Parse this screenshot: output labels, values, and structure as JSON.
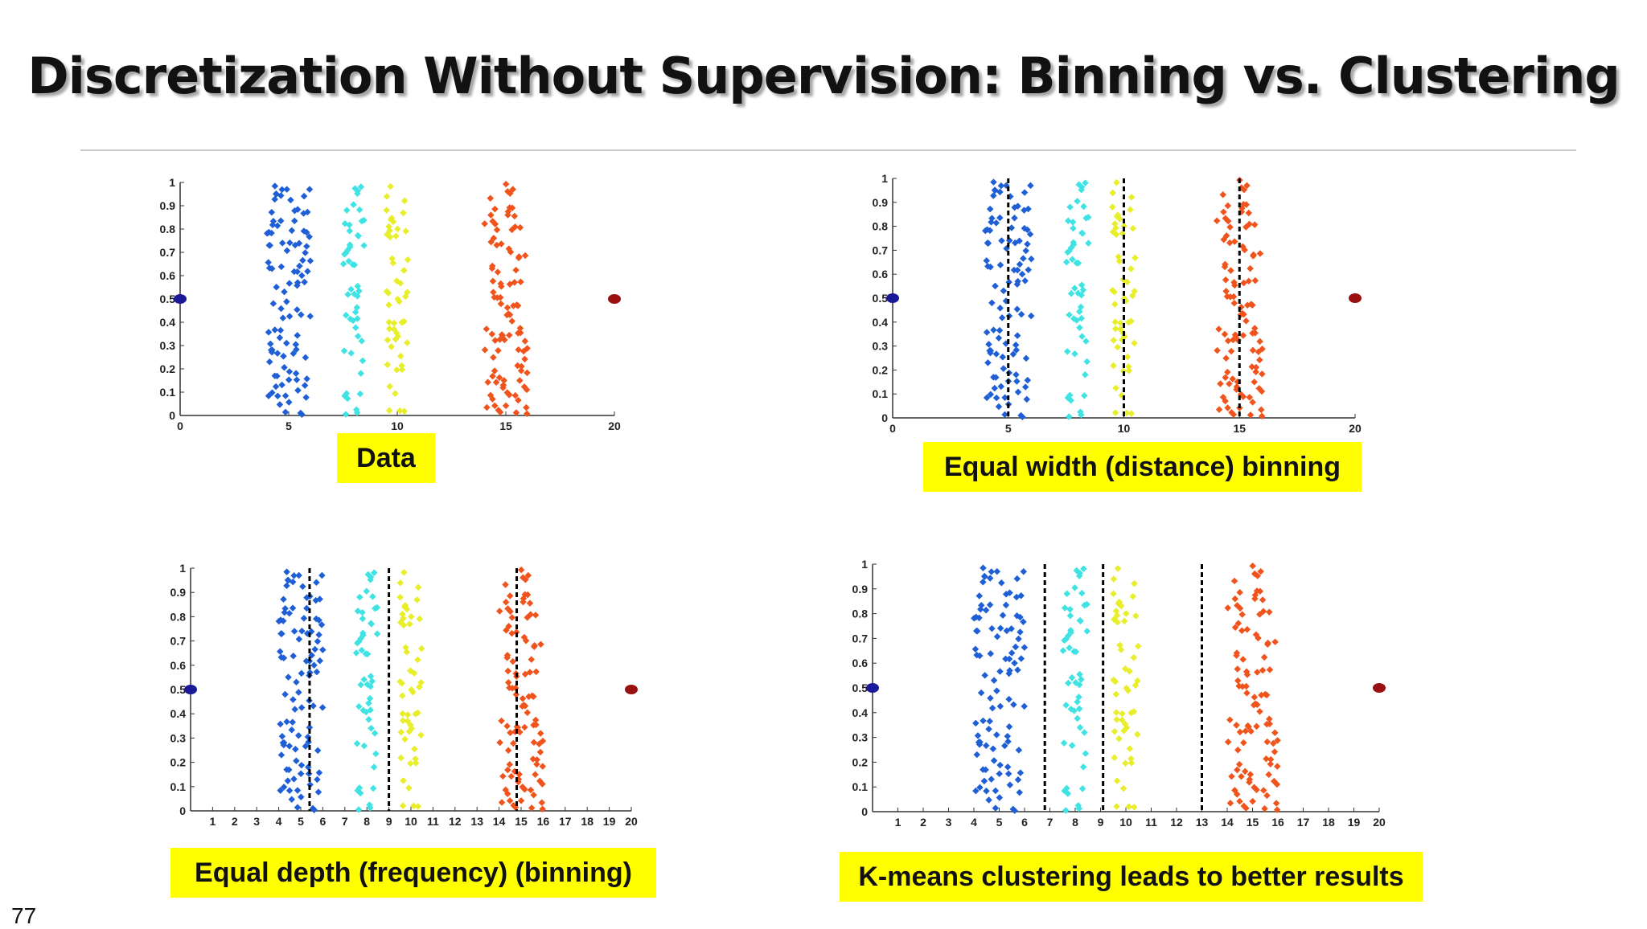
{
  "slide": {
    "title": "Discretization Without Supervision: Binning vs. Clustering",
    "page_number": "77",
    "captions": [
      "Data",
      "Equal width (distance) binning",
      "Equal depth (frequency) (binning)",
      "K-means clustering leads to better results"
    ]
  },
  "colors": {
    "cluster_blue": "#1f5fd6",
    "cluster_cyan": "#3fe3e3",
    "cluster_yellow": "#e8ee2a",
    "cluster_orange": "#f0541c",
    "outlier_left": "#1a1a99",
    "outlier_right": "#9a1010",
    "caption_background": "#ffff00"
  },
  "chart_data": [
    {
      "type": "scatter",
      "caption": "Data",
      "xlim": [
        0,
        20
      ],
      "ylim": [
        0,
        1
      ],
      "xticks": [
        "0",
        "5",
        "10",
        "15",
        "20"
      ],
      "yticks": [
        "0",
        "0.1",
        "0.2",
        "0.3",
        "0.4",
        "0.5",
        "0.6",
        "0.7",
        "0.8",
        "0.9",
        "1"
      ],
      "clusters": [
        {
          "color": "blue",
          "x_range": [
            4,
            6
          ],
          "count": 100
        },
        {
          "color": "cyan",
          "x_range": [
            7.5,
            8.5
          ],
          "count": 50
        },
        {
          "color": "yellow",
          "x_range": [
            9.5,
            10.5
          ],
          "count": 50
        },
        {
          "color": "orange",
          "x_range": [
            14,
            16
          ],
          "count": 100
        }
      ],
      "outliers": [
        {
          "x": 0,
          "y": 0.5,
          "color": "blue"
        },
        {
          "x": 20,
          "y": 0.5,
          "color": "red"
        }
      ],
      "cut_lines": []
    },
    {
      "type": "scatter",
      "caption": "Equal width (distance) binning",
      "xlim": [
        0,
        20
      ],
      "ylim": [
        0,
        1
      ],
      "xticks": [
        "0",
        "5",
        "10",
        "15",
        "20"
      ],
      "yticks": [
        "0",
        "0.1",
        "0.2",
        "0.3",
        "0.4",
        "0.5",
        "0.6",
        "0.7",
        "0.8",
        "0.9",
        "1"
      ],
      "clusters": [
        {
          "color": "blue",
          "x_range": [
            4,
            6
          ],
          "count": 100
        },
        {
          "color": "cyan",
          "x_range": [
            7.5,
            8.5
          ],
          "count": 50
        },
        {
          "color": "yellow",
          "x_range": [
            9.5,
            10.5
          ],
          "count": 50
        },
        {
          "color": "orange",
          "x_range": [
            14,
            16
          ],
          "count": 100
        }
      ],
      "outliers": [
        {
          "x": 0,
          "y": 0.5,
          "color": "blue"
        },
        {
          "x": 20,
          "y": 0.5,
          "color": "red"
        }
      ],
      "cut_lines": [
        5,
        10,
        15
      ]
    },
    {
      "type": "scatter",
      "caption": "Equal depth (frequency) (binning)",
      "xlim": [
        0,
        20
      ],
      "ylim": [
        0,
        1
      ],
      "xticks": [
        "1",
        "2",
        "3",
        "4",
        "5",
        "6",
        "7",
        "8",
        "9",
        "10",
        "11",
        "12",
        "13",
        "14",
        "15",
        "16",
        "17",
        "18",
        "19",
        "20"
      ],
      "yticks": [
        "0",
        "0.1",
        "0.2",
        "0.3",
        "0.4",
        "0.5",
        "0.6",
        "0.7",
        "0.8",
        "0.9",
        "1"
      ],
      "clusters": [
        {
          "color": "blue",
          "x_range": [
            4,
            6
          ],
          "count": 100
        },
        {
          "color": "cyan",
          "x_range": [
            7.5,
            8.5
          ],
          "count": 50
        },
        {
          "color": "yellow",
          "x_range": [
            9.5,
            10.5
          ],
          "count": 50
        },
        {
          "color": "orange",
          "x_range": [
            14,
            16
          ],
          "count": 100
        }
      ],
      "outliers": [
        {
          "x": 0,
          "y": 0.5,
          "color": "blue"
        },
        {
          "x": 20,
          "y": 0.5,
          "color": "red"
        }
      ],
      "cut_lines": [
        5.4,
        9,
        14.8
      ]
    },
    {
      "type": "scatter",
      "caption": "K-means clustering leads to better results",
      "xlim": [
        0,
        20
      ],
      "ylim": [
        0,
        1
      ],
      "xticks": [
        "1",
        "2",
        "3",
        "4",
        "5",
        "6",
        "7",
        "8",
        "9",
        "10",
        "11",
        "12",
        "13",
        "14",
        "15",
        "16",
        "17",
        "18",
        "19",
        "20"
      ],
      "yticks": [
        "0",
        "0.1",
        "0.2",
        "0.3",
        "0.4",
        "0.5",
        "0.6",
        "0.7",
        "0.8",
        "0.9",
        "1"
      ],
      "clusters": [
        {
          "color": "blue",
          "x_range": [
            4,
            6
          ],
          "count": 100
        },
        {
          "color": "cyan",
          "x_range": [
            7.5,
            8.5
          ],
          "count": 50
        },
        {
          "color": "yellow",
          "x_range": [
            9.5,
            10.5
          ],
          "count": 50
        },
        {
          "color": "orange",
          "x_range": [
            14,
            16
          ],
          "count": 100
        }
      ],
      "outliers": [
        {
          "x": 0,
          "y": 0.5,
          "color": "blue"
        },
        {
          "x": 20,
          "y": 0.5,
          "color": "red"
        }
      ],
      "cut_lines": [
        6.8,
        9.1,
        13
      ]
    }
  ]
}
